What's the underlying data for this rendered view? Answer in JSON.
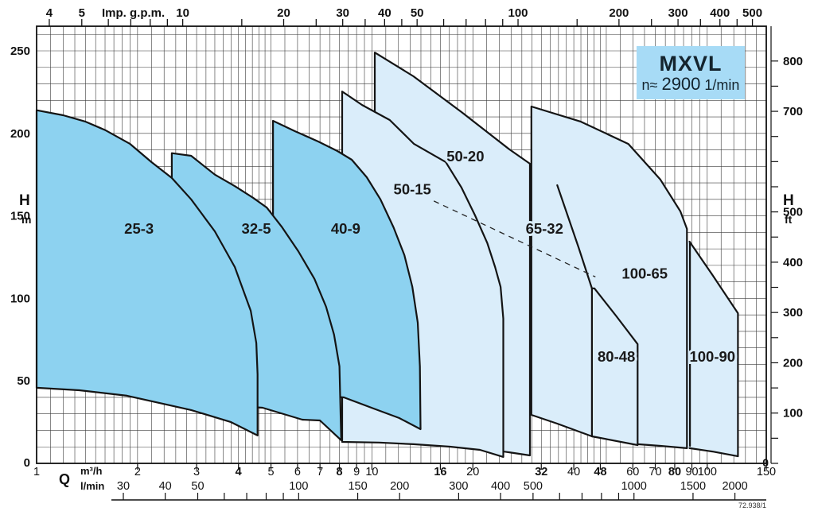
{
  "header": {
    "model": "MXVL",
    "speed_prefix": "n≈",
    "speed_value": "2900",
    "speed_unit": "1/min"
  },
  "footer": {
    "code": "72.938/1"
  },
  "colors": {
    "region_dark": "#8DD2F0",
    "region_light": "#DAEDFA",
    "box_bg": "#A7DBF6",
    "stroke": "#141414",
    "grid": "#3a3a3a",
    "frame": "#111111",
    "text": "#111111"
  },
  "axes": {
    "x_top": {
      "title": "Imp. g.p.m.",
      "unit": "Imp. g.p.m.",
      "tick_values": [
        4,
        5,
        6,
        7,
        8,
        9,
        10,
        15,
        20,
        25,
        30,
        35,
        40,
        45,
        50,
        60,
        70,
        80,
        90,
        100,
        150,
        200,
        250,
        300,
        350,
        400,
        450,
        500
      ],
      "label_values": [
        4,
        5,
        10,
        20,
        30,
        40,
        50,
        100,
        200,
        300,
        400,
        500
      ],
      "gpm_per_m3h": 3.6663
    },
    "x_bottom_m3h": {
      "axis_letter": "Q",
      "unit": "m³/h",
      "min": 1,
      "max": 150,
      "tick_values": [
        2,
        3,
        4,
        5,
        6,
        7,
        8,
        9,
        10,
        16,
        20,
        32,
        40,
        48,
        60,
        70,
        80,
        90,
        100,
        150
      ],
      "label_values": [
        1,
        2,
        3,
        4,
        5,
        6,
        7,
        8,
        9,
        10,
        16,
        20,
        32,
        40,
        48,
        60,
        70,
        80,
        90,
        100,
        150
      ],
      "bold_values": [
        4,
        8,
        16,
        32,
        48,
        80
      ]
    },
    "x_bottom_lmin": {
      "unit": "l/min",
      "tick_values": [
        30,
        40,
        50,
        60,
        70,
        80,
        90,
        100,
        150,
        200,
        300,
        400,
        500,
        600,
        700,
        800,
        900,
        1000,
        1500,
        2000
      ],
      "label_values": [
        30,
        40,
        50,
        100,
        150,
        200,
        300,
        400,
        500,
        1000,
        1500,
        2000
      ],
      "anchor_value": 30
    },
    "y_left": {
      "title": "H",
      "unit": "m",
      "min": 0,
      "max": 265,
      "label_values": [
        250,
        200,
        150,
        100,
        50,
        0
      ],
      "grid_step": 10,
      "grid_max": 260
    },
    "y_right": {
      "title": "H",
      "unit": "ft",
      "label_values": [
        800,
        700,
        500,
        400,
        300,
        200,
        100
      ],
      "zero_label": "0",
      "tick_step": 50,
      "tick_max": 800,
      "m_per_ft": 0.3048
    }
  },
  "chart_data": {
    "type": "area",
    "x_unit": "m³/h",
    "y_unit": "m",
    "x_scale": "log",
    "x_range": [
      1,
      150
    ],
    "y_range": [
      0,
      265
    ],
    "note": "Operating envelopes (flow Q in m³/h vs head H in m) for MXVL pump sizes",
    "series": [
      {
        "name": "100-65",
        "group": "light",
        "fill": [
          [
            61.7,
            12.0
          ],
          [
            61.7,
            135.8
          ],
          [
            88.6,
            134.4
          ],
          [
            103.6,
            114.2
          ],
          [
            123.5,
            91.0
          ],
          [
            123.5,
            4.3
          ],
          [
            90.5,
            8.7
          ],
          [
            61.7,
            12.0
          ]
        ],
        "stroke_segments": [
          [
            [
              88.6,
              134.4
            ],
            [
              103.6,
              114.2
            ],
            [
              123.5,
              91.0
            ],
            [
              123.5,
              4.3
            ],
            [
              103.6,
              7.2
            ],
            [
              88.6,
              9.2
            ]
          ]
        ],
        "label": {
          "q": 65.1,
          "h": 115
        }
      },
      {
        "name": "100-90",
        "group": "light",
        "stroke_segments": [
          [
            [
              88.8,
              133.4
            ],
            [
              88.8,
              10.6
            ]
          ]
        ],
        "label": {
          "q": 103.6,
          "h": 64.5
        }
      },
      {
        "name": "65-32",
        "group": "light",
        "outline": [
          [
            29.9,
            29.4
          ],
          [
            29.9,
            216.3
          ],
          [
            42.0,
            207.1
          ],
          [
            58.2,
            193.6
          ],
          [
            72.5,
            172.0
          ],
          [
            83.2,
            152.7
          ],
          [
            87.0,
            142.1
          ],
          [
            87.0,
            9.2
          ],
          [
            72.5,
            10.6
          ],
          [
            62.0,
            11.6
          ],
          [
            45.3,
            16.4
          ],
          [
            35.7,
            24.1
          ],
          [
            29.9,
            29.4
          ]
        ],
        "label": {
          "q": 32.7,
          "h": 142
        }
      },
      {
        "name": "80-48",
        "group": "light",
        "outline": [
          [
            45.3,
            106.0
          ],
          [
            45.3,
            16.4
          ],
          [
            62.0,
            11.1
          ],
          [
            62.0,
            72.3
          ],
          [
            53.6,
            89.1
          ],
          [
            46.1,
            106.0
          ],
          [
            45.3,
            106.0
          ]
        ],
        "stroke_segments": [
          [
            [
              35.7,
              168.6
            ],
            [
              41.3,
              131.0
            ],
            [
              45.3,
              106.0
            ]
          ]
        ],
        "label": {
          "q": 53.6,
          "h": 64.5
        }
      },
      {
        "name": "50-20",
        "group": "light",
        "outline": [
          [
            10.2,
            14.5
          ],
          [
            10.2,
            249.0
          ],
          [
            13.3,
            234.6
          ],
          [
            18.5,
            212.9
          ],
          [
            25.7,
            190.3
          ],
          [
            29.6,
            181.6
          ],
          [
            29.6,
            4.8
          ],
          [
            25.7,
            6.7
          ],
          [
            20.7,
            9.2
          ],
          [
            14.9,
            12.0
          ],
          [
            10.2,
            14.5
          ]
        ],
        "label": {
          "q": 19.0,
          "h": 186
        }
      },
      {
        "name": "50-15",
        "group": "light",
        "outline": [
          [
            8.15,
            13.0
          ],
          [
            8.15,
            225.4
          ],
          [
            9.35,
            217.2
          ],
          [
            11.3,
            208.1
          ],
          [
            13.35,
            193.6
          ],
          [
            16.6,
            182.6
          ],
          [
            18.5,
            167.1
          ],
          [
            20.3,
            150.3
          ],
          [
            22.1,
            133.4
          ],
          [
            23.3,
            119.0
          ],
          [
            24.2,
            107.0
          ],
          [
            24.65,
            87.7
          ],
          [
            24.65,
            3.9
          ],
          [
            21.0,
            8.2
          ],
          [
            17.1,
            10.1
          ],
          [
            13.3,
            11.6
          ],
          [
            10.5,
            12.6
          ],
          [
            8.15,
            13.0
          ]
        ],
        "label": {
          "q": 13.2,
          "h": 166
        }
      },
      {
        "name": "40-9",
        "group": "dark",
        "outline": [
          [
            5.07,
            42.0
          ],
          [
            5.07,
            207.6
          ],
          [
            5.9,
            201.3
          ],
          [
            6.91,
            195.1
          ],
          [
            7.89,
            189.3
          ],
          [
            8.71,
            184.0
          ],
          [
            9.65,
            173.4
          ],
          [
            10.6,
            160.0
          ],
          [
            11.6,
            143.0
          ],
          [
            12.5,
            126.2
          ],
          [
            13.2,
            107.0
          ],
          [
            13.7,
            85.3
          ],
          [
            13.9,
            58.8
          ],
          [
            13.96,
            20.7
          ],
          [
            12.05,
            27.5
          ],
          [
            10.13,
            33.2
          ],
          [
            8.25,
            40.0
          ],
          [
            6.5,
            41.5
          ],
          [
            5.07,
            42.0
          ]
        ],
        "label": {
          "q": 8.35,
          "h": 142
        }
      },
      {
        "name": "32-5",
        "group": "dark",
        "outline": [
          [
            2.53,
            36.5
          ],
          [
            2.53,
            188.0
          ],
          [
            2.89,
            186.4
          ],
          [
            3.4,
            175.0
          ],
          [
            3.9,
            168.0
          ],
          [
            4.42,
            161.0
          ],
          [
            4.86,
            155.0
          ],
          [
            5.4,
            143.0
          ],
          [
            6.03,
            128.6
          ],
          [
            6.74,
            111.8
          ],
          [
            7.3,
            94.9
          ],
          [
            7.71,
            78.0
          ],
          [
            8.0,
            58.8
          ],
          [
            8.1,
            14.0
          ],
          [
            7.0,
            26.0
          ],
          [
            6.2,
            26.5
          ],
          [
            4.72,
            33.7
          ],
          [
            3.4,
            35.6
          ],
          [
            2.53,
            36.5
          ]
        ],
        "label": {
          "q": 4.52,
          "h": 142
        }
      },
      {
        "name": "25-3",
        "group": "dark",
        "outline": [
          [
            1.0,
            45.8
          ],
          [
            1.0,
            214.0
          ],
          [
            1.2,
            211.0
          ],
          [
            1.4,
            207.1
          ],
          [
            1.6,
            202.0
          ],
          [
            1.9,
            193.6
          ],
          [
            2.2,
            182.6
          ],
          [
            2.53,
            173.0
          ],
          [
            2.89,
            160.0
          ],
          [
            3.4,
            140.6
          ],
          [
            3.9,
            119.0
          ],
          [
            4.35,
            92.5
          ],
          [
            4.52,
            73.0
          ],
          [
            4.56,
            54.0
          ],
          [
            4.56,
            16.9
          ],
          [
            3.8,
            25.0
          ],
          [
            2.89,
            32.3
          ],
          [
            1.86,
            41.0
          ],
          [
            1.34,
            44.3
          ],
          [
            1.0,
            45.8
          ]
        ],
        "label": {
          "q": 2.02,
          "h": 142
        }
      }
    ],
    "dashed_line": {
      "points": [
        [
          15.3,
          159.0
        ],
        [
          46.4,
          113.0
        ]
      ]
    }
  }
}
